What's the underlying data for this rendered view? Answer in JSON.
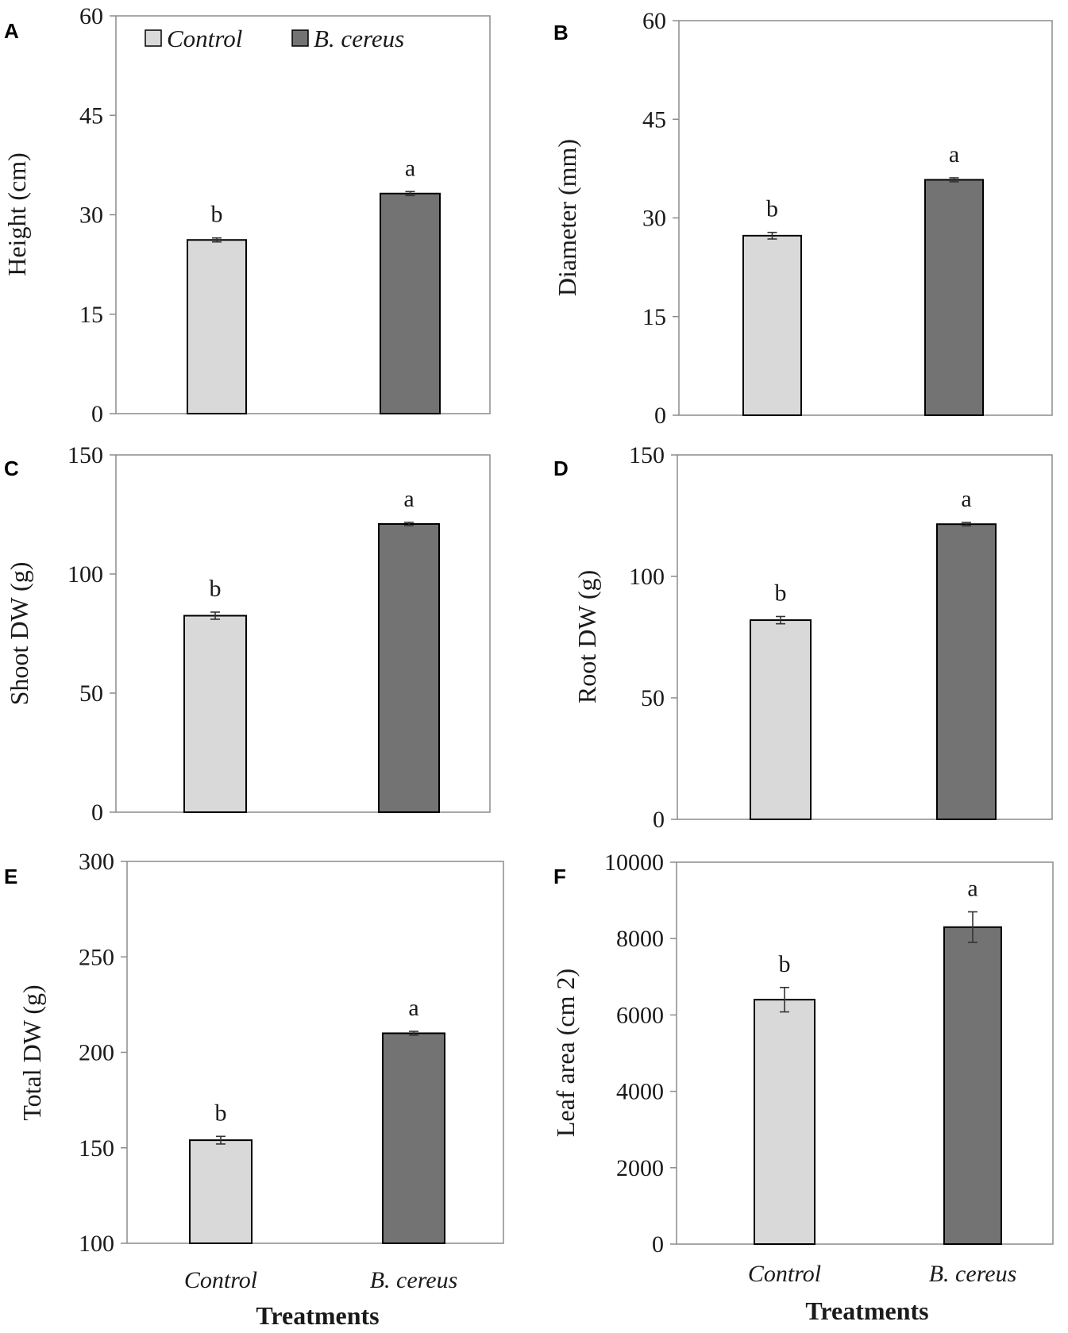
{
  "figure": {
    "colors": {
      "control": "#d9d9d9",
      "treatment": "#737373",
      "axis": "#8c8c8c",
      "outline": "#000000",
      "errorbar": "#333333"
    },
    "legend": [
      {
        "label": "Control",
        "color": "#d9d9d9"
      },
      {
        "label": "B. cereus",
        "color": "#737373"
      }
    ]
  },
  "chart_data": [
    {
      "panel": "A",
      "type": "bar",
      "categories": [
        "Control",
        "B. cereus"
      ],
      "values": [
        26.2,
        33.2
      ],
      "errors": [
        0.3,
        0.3
      ],
      "significance": [
        "b",
        "a"
      ],
      "ylabel": "Height  (cm)",
      "ylim": [
        0,
        60
      ],
      "yticks": [
        0,
        15,
        30,
        45,
        60
      ],
      "xlabel": "",
      "show_xticks": false,
      "legend": "top-left"
    },
    {
      "panel": "B",
      "type": "bar",
      "categories": [
        "Control",
        "B. cereus"
      ],
      "values": [
        27.3,
        35.8
      ],
      "errors": [
        0.5,
        0.3
      ],
      "significance": [
        "b",
        "a"
      ],
      "ylabel": "Diameter  (mm)",
      "ylim": [
        0,
        60
      ],
      "yticks": [
        0,
        15,
        30,
        45,
        60
      ],
      "xlabel": "",
      "show_xticks": false
    },
    {
      "panel": "C",
      "type": "bar",
      "categories": [
        "Control",
        "B. cereus"
      ],
      "values": [
        82.5,
        121
      ],
      "errors": [
        1.5,
        0.7
      ],
      "significance": [
        "b",
        "a"
      ],
      "ylabel": "Shoot  DW  (g)",
      "ylim": [
        0,
        150
      ],
      "yticks": [
        0,
        50,
        100,
        150
      ],
      "xlabel": "",
      "show_xticks": false
    },
    {
      "panel": "D",
      "type": "bar",
      "categories": [
        "Control",
        "B. cereus"
      ],
      "values": [
        82,
        121.5
      ],
      "errors": [
        1.5,
        0.7
      ],
      "significance": [
        "b",
        "a"
      ],
      "ylabel": "Root  DW  (g)",
      "ylim": [
        0,
        150
      ],
      "yticks": [
        0,
        50,
        100,
        150
      ],
      "xlabel": "",
      "show_xticks": false
    },
    {
      "panel": "E",
      "type": "bar",
      "categories": [
        "Control",
        "B. cereus"
      ],
      "values": [
        154,
        210
      ],
      "errors": [
        2,
        1
      ],
      "significance": [
        "b",
        "a"
      ],
      "ylabel": "Total DW (g)",
      "ylim": [
        100,
        300
      ],
      "yticks": [
        100,
        150,
        200,
        250,
        300
      ],
      "xlabel": "Treatments",
      "show_xticks": true
    },
    {
      "panel": "F",
      "type": "bar",
      "categories": [
        "Control",
        "B. cereus"
      ],
      "values": [
        6400,
        8300
      ],
      "errors": [
        320,
        400
      ],
      "significance": [
        "b",
        "a"
      ],
      "ylabel": "Leaf  area (cm 2)",
      "ylim": [
        0,
        10000
      ],
      "yticks": [
        0,
        2000,
        4000,
        6000,
        8000,
        10000
      ],
      "xlabel": "Treatments",
      "show_xticks": true
    }
  ]
}
